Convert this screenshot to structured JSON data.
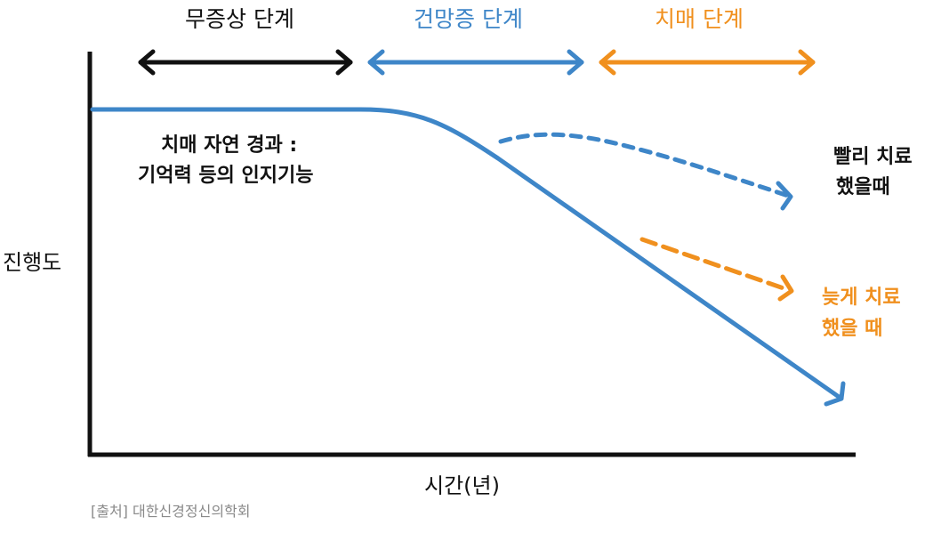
{
  "stages": {
    "asymptomatic": {
      "label": "무증상 단계",
      "color": "#111111"
    },
    "amnesia": {
      "label": "건망증 단계",
      "color": "#3e86c8"
    },
    "dementia": {
      "label": "치매 단계",
      "color": "#f0901e"
    }
  },
  "axes": {
    "y_label": "진행도",
    "x_label": "시간(년)"
  },
  "natural_course": {
    "line1": "치매 자연 경과 :",
    "line2": "기억력 등의 인지기능",
    "color": "#3e86c8"
  },
  "early_treatment": {
    "line1": "빨리 치료",
    "line2": "했을때",
    "color": "#3e86c8"
  },
  "late_treatment": {
    "line1": "늦게 치료",
    "line2": "했을 때",
    "color": "#f0901e"
  },
  "source": "[출처] 대한신경정신의학회"
}
